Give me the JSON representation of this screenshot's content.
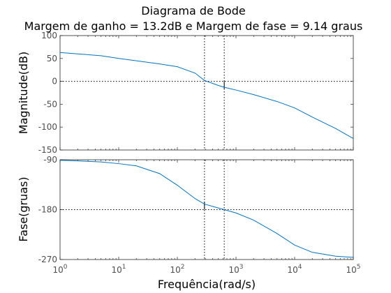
{
  "chart_data": {
    "type": "line",
    "title": "Diagrama de Bode",
    "subtitle": "Margem de ganho = 13.2dB e Margem de fase = 9.14 graus",
    "xlabel": "Frequência(rad/s)",
    "xscale": "log",
    "xlim": [
      1,
      100000
    ],
    "x_ticks": [
      {
        "base": "10",
        "exp": "0",
        "value": 1
      },
      {
        "base": "10",
        "exp": "1",
        "value": 10
      },
      {
        "base": "10",
        "exp": "2",
        "value": 100
      },
      {
        "base": "10",
        "exp": "3",
        "value": 1000
      },
      {
        "base": "10",
        "exp": "4",
        "value": 10000
      },
      {
        "base": "10",
        "exp": "5",
        "value": 100000
      }
    ],
    "gain_crossover_frequency": 290,
    "phase_crossover_frequency": 630,
    "subplots": [
      {
        "name": "magnitude",
        "ylabel": "Magnitude(dB)",
        "ylim": [
          -150,
          100
        ],
        "yticks": [
          "100",
          "50",
          "0",
          "-50",
          "-100",
          "-150"
        ],
        "reference_line": 0,
        "series": [
          {
            "color": "#0072bd",
            "x": [
              1,
              2,
              5,
              10,
              20,
              50,
              100,
              200,
              290,
              500,
              630,
              1000,
              2000,
              5000,
              10000,
              20000,
              50000,
              100000
            ],
            "y": [
              63,
              60,
              56,
              50,
              45,
              38,
              32,
              18,
              2,
              -9,
              -13,
              -19,
              -29,
              -44,
              -58,
              -78,
              -103,
              -125
            ]
          }
        ]
      },
      {
        "name": "phase",
        "ylabel": "Fase(gruas)",
        "ylim": [
          -270,
          -90
        ],
        "yticks": [
          "-90",
          "-180",
          "-270"
        ],
        "reference_line": -180,
        "series": [
          {
            "color": "#0072bd",
            "x": [
              1,
              2,
              5,
              10,
              20,
              50,
              100,
              200,
              290,
              500,
              630,
              1000,
              2000,
              5000,
              10000,
              20000,
              50000,
              100000
            ],
            "y": [
              -91,
              -92,
              -94,
              -97,
              -101,
              -115,
              -136,
              -160,
              -170,
              -177,
              -180,
              -186,
              -199,
              -223,
              -244,
              -257,
              -264,
              -266
            ]
          }
        ]
      }
    ]
  }
}
